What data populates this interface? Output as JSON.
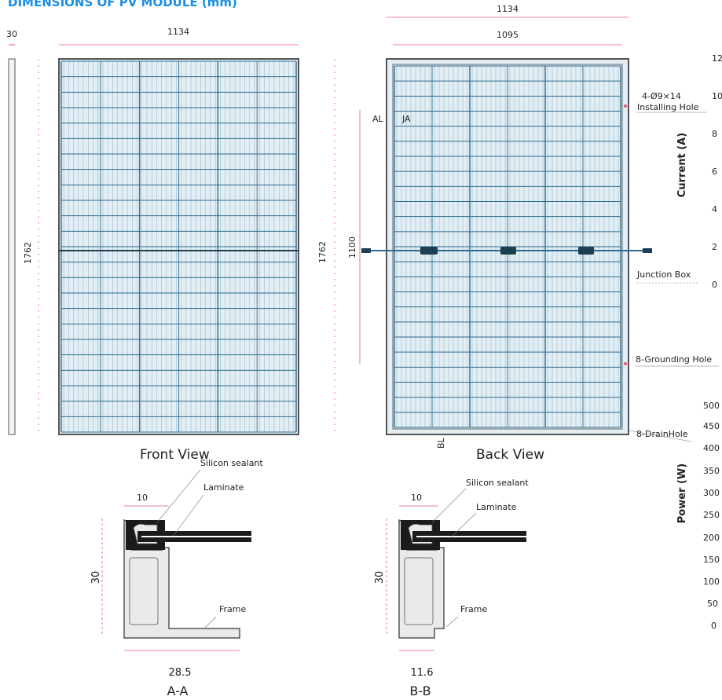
{
  "title": "DIMENSIONS OF PV MODULE (mm)",
  "colors": {
    "title": "#1a8fe3",
    "panel_grid": "#2d6b8f",
    "panel_fill": "#e3eef4",
    "frame": "#555555",
    "dim_line": "#e05a78",
    "laminate": "#1b1b1b"
  },
  "side_view": {
    "width": "30",
    "height": "1762"
  },
  "front_view": {
    "width": "1134",
    "height": "1762",
    "label": "Front View"
  },
  "back_view": {
    "outer_width": "1134",
    "inner_width": "1095",
    "height": "1762",
    "hole_spacing": "1100",
    "label": "Back View",
    "section_a_left": "AL",
    "section_a_right": "JA",
    "section_b": "BL",
    "section_b_mark": "B",
    "installing_hole_spec": "4-Ø9×14",
    "installing_hole_label": "Installing Hole",
    "junction_box_label": "Junction Box",
    "grounding_hole_label": "8-Grounding Hole",
    "drain_hole_label": "8-DrainHole"
  },
  "current_axis": {
    "label": "Current (A)",
    "ticks": [
      "12",
      "10",
      "8",
      "6",
      "4",
      "2",
      "0"
    ]
  },
  "power_axis": {
    "label": "Power (W)",
    "ticks": [
      "500",
      "450",
      "400",
      "350",
      "300",
      "250",
      "200",
      "150",
      "100",
      "50",
      "0"
    ]
  },
  "section_aa": {
    "label": "A-A",
    "top_width": "10",
    "height": "30",
    "bottom_width": "28.5",
    "sealant_label": "Silicon sealant",
    "laminate_label": "Laminate",
    "frame_label": "Frame"
  },
  "section_bb": {
    "label": "B-B",
    "top_width": "10",
    "height": "30",
    "bottom_width": "11.6",
    "sealant_label": "Silicon sealant",
    "laminate_label": "Laminate",
    "frame_label": "Frame"
  }
}
